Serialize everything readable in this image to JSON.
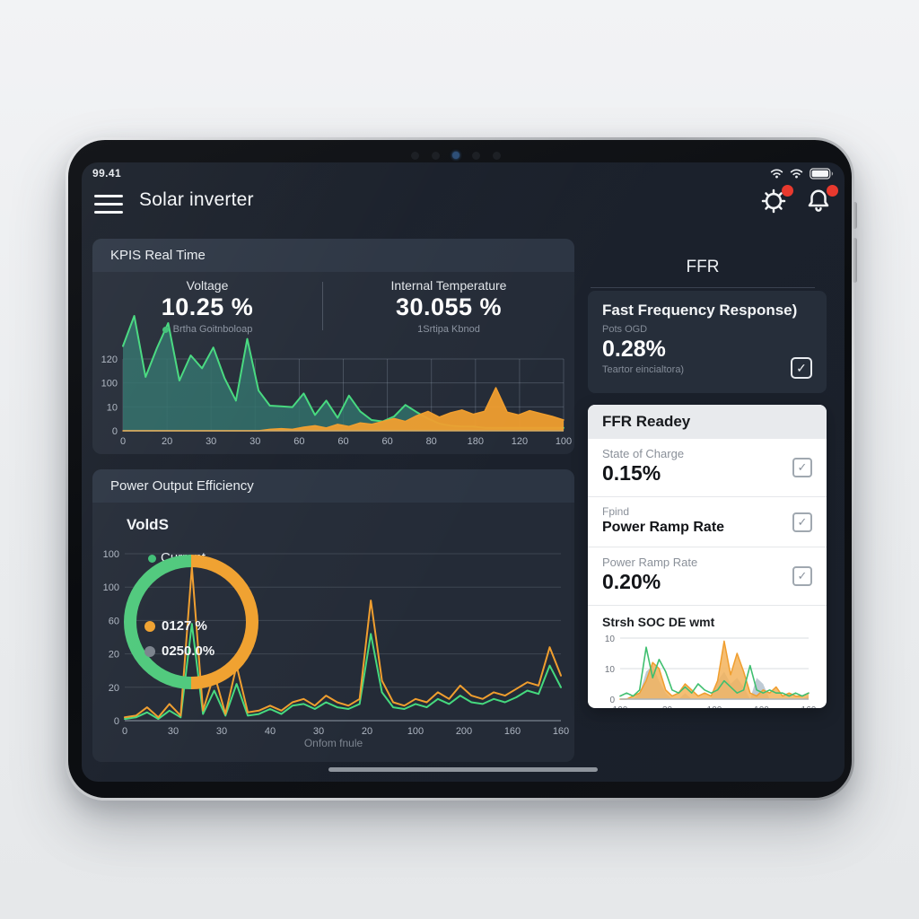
{
  "status_bar": {
    "time": "99.41"
  },
  "app_bar": {
    "title": "Solar inverter"
  },
  "kpis_panel": {
    "title": "KPIS Real Time",
    "kpis": [
      {
        "label": "Voltage",
        "value": "10.25 %",
        "sub": "Brtha Goitnboloap"
      },
      {
        "label": "Internal Temperature",
        "value": "30.055 %",
        "sub": "1Srtipa Kbnod"
      }
    ]
  },
  "power_panel": {
    "title": "Power Output Efficiency",
    "chart_title": "VoldS",
    "legend": "Current",
    "xlabel": "Onfom fnule",
    "gauge_rows": [
      {
        "value": "0127 %"
      },
      {
        "value": "0250.0%"
      }
    ]
  },
  "ffr_panel": {
    "title": "FFR",
    "card": {
      "heading": "Fast Frequency Response)",
      "sub": "Pots OGD",
      "value": "0.28%",
      "footnote": "Teartor eincialtora)"
    },
    "white_card": {
      "header": "FFR Readey",
      "rows": [
        {
          "label": "State of Charge",
          "value": "0.15%"
        },
        {
          "label": "Fpind",
          "value": "Power Ramp Rate"
        },
        {
          "label": "Power Ramp Rate",
          "value": "0.20%"
        }
      ],
      "chart_title": "Strsh SOC DE wmt"
    }
  },
  "colors": {
    "accent_green": "#45d97e",
    "teal_fill": "#2f6f68",
    "accent_orange": "#f09e2e",
    "badge_red": "#e8392e",
    "gauge_gray": "#7b828c"
  },
  "chart_data": [
    {
      "id": "kpis_realtime",
      "type": "area",
      "title": "KPIS Real Time",
      "yticks": [
        "120",
        "100",
        "10",
        "0"
      ],
      "xticks": [
        "0",
        "20",
        "30",
        "30",
        "60",
        "60",
        "60",
        "80",
        "180",
        "120",
        "100"
      ],
      "ymax": 100,
      "series": [
        {
          "name": "voltage",
          "color": "#45d97e",
          "fill": "#2f6f68",
          "fill_opacity": 0.85,
          "width": 2,
          "values": [
            118,
            160,
            75,
            115,
            150,
            70,
            105,
            87,
            116,
            73,
            42,
            128,
            56,
            35,
            34,
            33,
            52,
            22,
            42,
            18,
            49,
            27,
            15,
            13,
            20,
            36,
            26,
            17,
            10,
            7,
            6,
            6,
            4,
            4,
            4,
            4,
            4,
            4,
            4,
            4
          ]
        },
        {
          "name": "internal_temperature",
          "color": "#f09e2e",
          "fill": "#f09e2e",
          "fill_opacity": 0.95,
          "width": 1.5,
          "values": [
            0,
            0,
            0,
            0,
            0,
            0,
            0,
            0,
            0,
            0,
            0,
            0,
            0,
            2,
            3,
            2,
            5,
            7,
            4,
            9,
            6,
            11,
            9,
            13,
            17,
            13,
            21,
            27,
            19,
            25,
            29,
            23,
            27,
            60,
            26,
            22,
            28,
            24,
            20,
            15
          ]
        }
      ]
    },
    {
      "id": "power_output_efficiency",
      "type": "line",
      "title": "VoldS",
      "legend": [
        "Current"
      ],
      "yticks": [
        "100",
        "100",
        "60",
        "20",
        "20",
        "0"
      ],
      "xticks": [
        "0",
        "30",
        "30",
        "40",
        "30",
        "20",
        "100",
        "200",
        "160",
        "160"
      ],
      "xlabel": "Onfom fnule",
      "ymax": 100,
      "series": [
        {
          "name": "current",
          "color": "#45d97e",
          "width": 2,
          "values": [
            1,
            2,
            5,
            1,
            6,
            2,
            58,
            4,
            18,
            3,
            22,
            3,
            4,
            7,
            4,
            9,
            10,
            7,
            11,
            8,
            7,
            10,
            52,
            17,
            8,
            7,
            10,
            8,
            13,
            10,
            15,
            11,
            10,
            13,
            11,
            14,
            18,
            16,
            33,
            20
          ]
        },
        {
          "name": "output",
          "color": "#f09e2e",
          "width": 2,
          "values": [
            2,
            3,
            8,
            2,
            10,
            3,
            92,
            6,
            28,
            4,
            33,
            5,
            6,
            9,
            6,
            11,
            13,
            9,
            15,
            11,
            9,
            13,
            72,
            24,
            11,
            9,
            13,
            11,
            17,
            13,
            21,
            15,
            13,
            17,
            15,
            19,
            23,
            21,
            44,
            27
          ]
        }
      ],
      "gauge": {
        "left_color": "#4fc97c",
        "right_color": "#f0a12f",
        "labels": [
          "0127 %",
          "0250.0%"
        ],
        "label_colors": [
          "#f0a12f",
          "#7b828c"
        ]
      }
    },
    {
      "id": "soc_mini",
      "type": "area",
      "title": "Strsh SOC DE wmt",
      "yticks": [
        "10",
        "10",
        "0"
      ],
      "xticks": [
        "100",
        "30",
        "100",
        "100",
        "160"
      ],
      "ymax": 20,
      "series": [
        {
          "name": "gray_band",
          "color": "#9fb0bd",
          "fill": "#aebdc9",
          "fill_opacity": 0.8,
          "line": false,
          "values": [
            0,
            0,
            0,
            2,
            9,
            11,
            6,
            2,
            0,
            0,
            2,
            0,
            0,
            0,
            0,
            6,
            9,
            5,
            7,
            4,
            0,
            7,
            5,
            0,
            0,
            0,
            0,
            0,
            0,
            1
          ]
        },
        {
          "name": "orange_band",
          "color": "#f09e2e",
          "fill": "#f3b35c",
          "fill_opacity": 0.85,
          "width": 1.5,
          "values": [
            0,
            0,
            1,
            2,
            6,
            12,
            10,
            3,
            1,
            2,
            5,
            3,
            1,
            2,
            1,
            6,
            19,
            8,
            15,
            9,
            2,
            1,
            3,
            2,
            4,
            1,
            2,
            1,
            1,
            2
          ]
        },
        {
          "name": "green_line",
          "color": "#3fbf6f",
          "width": 1.6,
          "values": [
            1,
            2,
            1,
            3,
            17,
            7,
            13,
            9,
            3,
            2,
            4,
            2,
            5,
            3,
            2,
            3,
            6,
            4,
            2,
            3,
            11,
            3,
            2,
            3,
            2,
            2,
            1,
            2,
            1,
            2
          ]
        }
      ]
    }
  ]
}
